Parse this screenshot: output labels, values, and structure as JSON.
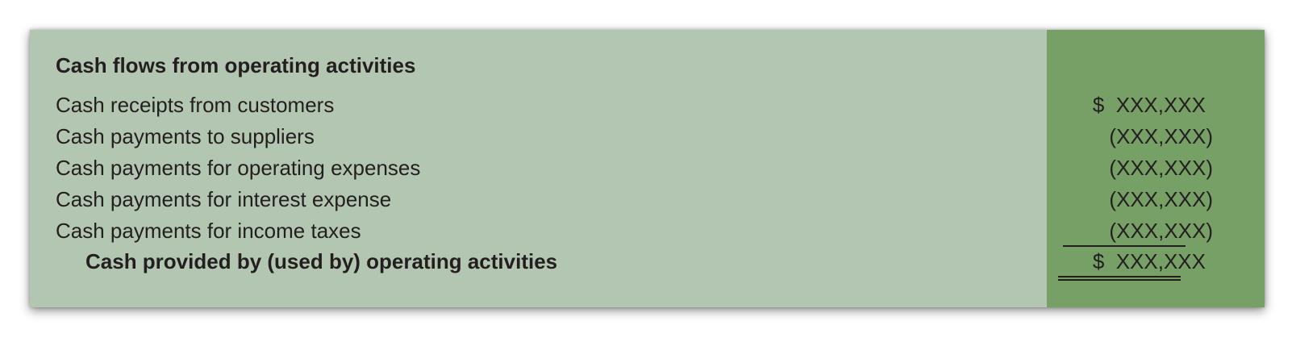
{
  "statement": {
    "title": "Cash flows from operating activities",
    "rows": [
      {
        "label": "Cash receipts from customers",
        "amount": "$  XXX,XXX"
      },
      {
        "label": "Cash payments to suppliers",
        "amount": "(XXX,XXX)"
      },
      {
        "label": "Cash payments for operating expenses",
        "amount": "(XXX,XXX)"
      },
      {
        "label": "Cash payments for interest expense",
        "amount": "(XXX,XXX)"
      },
      {
        "label": "Cash payments for income taxes",
        "amount": "(XXX,XXX)"
      }
    ],
    "total": {
      "label": "Cash provided by (used by) operating activities",
      "amount": "$  XXX,XXX"
    }
  },
  "colors": {
    "label_background": "#b3c6b1",
    "amount_background": "#76a066",
    "text": "#231f20"
  }
}
